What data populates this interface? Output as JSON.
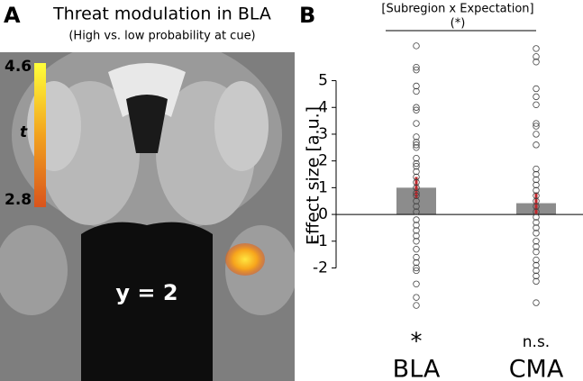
{
  "panel_a": {
    "panel_label": "A",
    "title": "Threat modulation in BLA",
    "subtitle": "(High vs. low probability at cue)",
    "colorbar": {
      "max": 4.6,
      "label": "t",
      "min": 2.8
    },
    "slice_label": "y = 2"
  },
  "chart_data": {
    "type": "bar",
    "panel_label": "B",
    "ylabel": "Effect size [a.u.]",
    "bracket_label": "[Subregion x Expectation]",
    "bracket_significance": "(*)",
    "categories": [
      "BLA",
      "CMA"
    ],
    "significance": [
      "*",
      "n.s."
    ],
    "values": [
      1.0,
      0.42
    ],
    "errors": [
      0.4,
      0.4
    ],
    "color": "#8c8c8c",
    "error_color": "#c0282d",
    "points": [
      [
        6.3,
        5.5,
        5.4,
        4.8,
        4.6,
        4.0,
        3.9,
        3.4,
        2.9,
        2.7,
        2.6,
        2.5,
        2.1,
        1.9,
        1.8,
        1.6,
        1.4,
        1.2,
        1.0,
        0.8,
        0.7,
        0.5,
        0.3,
        0.1,
        -0.2,
        -0.4,
        -0.6,
        -0.8,
        -1.0,
        -1.3,
        -1.6,
        -1.8,
        -2.0,
        -2.1,
        -2.6,
        -3.1,
        -3.4
      ],
      [
        6.2,
        5.9,
        5.7,
        4.7,
        4.4,
        4.1,
        3.4,
        3.3,
        3.0,
        2.6,
        1.7,
        1.5,
        1.3,
        1.1,
        0.9,
        0.7,
        0.5,
        0.3,
        0.1,
        -0.1,
        -0.3,
        -0.5,
        -0.7,
        -1.0,
        -1.2,
        -1.4,
        -1.7,
        -1.9,
        -2.1,
        -2.3,
        -2.5,
        -3.3
      ]
    ],
    "ylim": [
      -3.6,
      6.5
    ],
    "yticks": [
      -2,
      -1,
      0,
      1,
      2,
      3,
      4,
      5
    ]
  }
}
